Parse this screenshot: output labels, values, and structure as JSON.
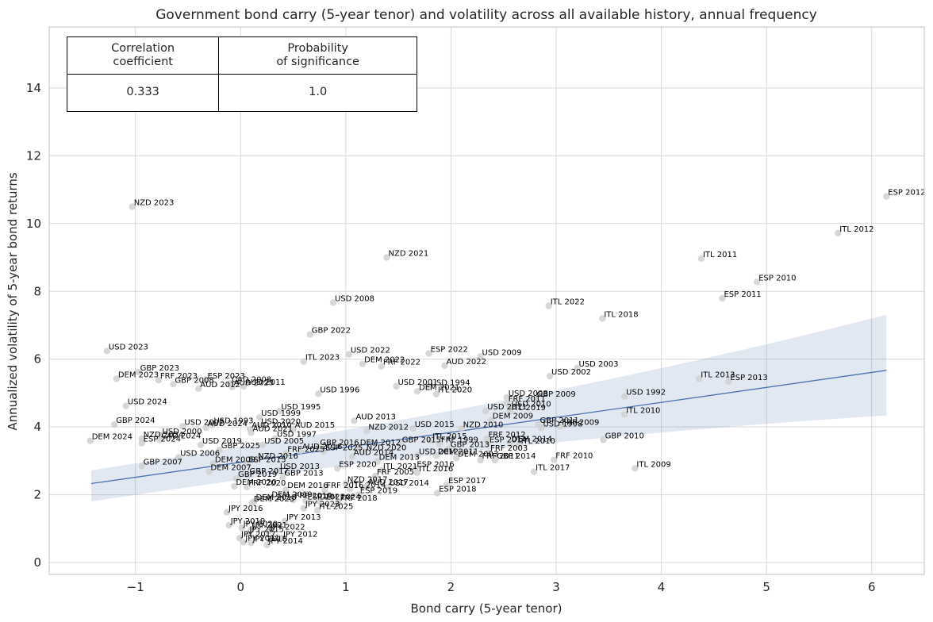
{
  "chart_data": {
    "type": "scatter",
    "title": "Government bond carry (5-year tenor) and volatility across all available history, annual frequency",
    "xlabel": "Bond carry (5-year tenor)",
    "ylabel": "Annualized volatility of 5-year bond returns",
    "xlim": [
      -1.82,
      6.5
    ],
    "ylim": [
      -0.35,
      15.8
    ],
    "xticks": [
      -1,
      0,
      1,
      2,
      3,
      4,
      5,
      6
    ],
    "yticks": [
      0,
      2,
      4,
      6,
      8,
      10,
      12,
      14
    ],
    "grid": true,
    "regression": {
      "x": [
        -1.42,
        6.14
      ],
      "y": [
        2.33,
        5.67
      ],
      "ci_lower": [
        1.52,
        4.34
      ],
      "ci_upper": [
        2.93,
        7.31
      ]
    },
    "stats_table": {
      "headers": [
        "Correlation\ncoefficient",
        "Probability\nof significance"
      ],
      "values": [
        "0.333",
        "1.0"
      ]
    },
    "points": [
      {
        "label": "ESP 2012",
        "x": 6.14,
        "y": 10.8
      },
      {
        "label": "ITL 2012",
        "x": 5.68,
        "y": 9.72
      },
      {
        "label": "ITL 2011",
        "x": 4.38,
        "y": 8.97
      },
      {
        "label": "ESP 2010",
        "x": 4.91,
        "y": 8.28
      },
      {
        "label": "ESP 2011",
        "x": 4.58,
        "y": 7.8
      },
      {
        "label": "ITL 2022",
        "x": 2.93,
        "y": 7.57
      },
      {
        "label": "ITL 2018",
        "x": 3.44,
        "y": 7.2
      },
      {
        "label": "NZD 2023",
        "x": -1.03,
        "y": 10.5
      },
      {
        "label": "NZD 2021",
        "x": 1.39,
        "y": 9.0
      },
      {
        "label": "USD 2008",
        "x": 0.88,
        "y": 7.67
      },
      {
        "label": "GBP 2022",
        "x": 0.66,
        "y": 6.73
      },
      {
        "label": "USD 2023",
        "x": -1.27,
        "y": 6.24
      },
      {
        "label": "USD 2022",
        "x": 1.03,
        "y": 6.14
      },
      {
        "label": "ESP 2022",
        "x": 1.79,
        "y": 6.17
      },
      {
        "label": "USD 2009",
        "x": 2.28,
        "y": 6.08
      },
      {
        "label": "ITL 2023",
        "x": 0.6,
        "y": 5.93
      },
      {
        "label": "DEM 2022",
        "x": 1.16,
        "y": 5.86
      },
      {
        "label": "FRF 2022",
        "x": 1.34,
        "y": 5.79
      },
      {
        "label": "AUD 2022",
        "x": 1.94,
        "y": 5.81
      },
      {
        "label": "USD 2003",
        "x": 3.2,
        "y": 5.74
      },
      {
        "label": "USD 2002",
        "x": 2.94,
        "y": 5.5
      },
      {
        "label": "GBP 2023",
        "x": -0.97,
        "y": 5.62
      },
      {
        "label": "DEM 2023",
        "x": -1.18,
        "y": 5.42
      },
      {
        "label": "FRF 2023",
        "x": -0.78,
        "y": 5.38
      },
      {
        "label": "ESP 2023",
        "x": -0.33,
        "y": 5.38
      },
      {
        "label": "GBP 2008",
        "x": -0.64,
        "y": 5.26
      },
      {
        "label": "ITL 2013",
        "x": 4.36,
        "y": 5.42
      },
      {
        "label": "ESP 2013",
        "x": 4.64,
        "y": 5.34
      },
      {
        "label": "CAD 2008",
        "x": -0.1,
        "y": 5.28
      },
      {
        "label": "AUD 2012",
        "x": -0.4,
        "y": 5.13
      },
      {
        "label": "AUD 2011",
        "x": 0.03,
        "y": 5.2
      },
      {
        "label": "AUD 2023",
        "x": -0.08,
        "y": 5.18
      },
      {
        "label": "USD 2001",
        "x": 1.48,
        "y": 5.2
      },
      {
        "label": "USD 1994",
        "x": 1.79,
        "y": 5.18
      },
      {
        "label": "DEM 2021",
        "x": 1.68,
        "y": 5.05
      },
      {
        "label": "ITL 2020",
        "x": 1.86,
        "y": 4.97
      },
      {
        "label": "USD 1996",
        "x": 0.74,
        "y": 4.98
      },
      {
        "label": "USD 2024",
        "x": -1.09,
        "y": 4.62
      },
      {
        "label": "USD 1992",
        "x": 3.65,
        "y": 4.9
      },
      {
        "label": "USD 2008",
        "x": 2.53,
        "y": 4.87
      },
      {
        "label": "GBP 2009",
        "x": 2.8,
        "y": 4.85
      },
      {
        "label": "FRF 2011",
        "x": 2.53,
        "y": 4.7
      },
      {
        "label": "USD 2010",
        "x": 2.56,
        "y": 4.55
      },
      {
        "label": "USD 2011",
        "x": 2.33,
        "y": 4.47
      },
      {
        "label": "ITL 2019",
        "x": 2.56,
        "y": 4.45
      },
      {
        "label": "ITL 2010",
        "x": 3.65,
        "y": 4.37
      },
      {
        "label": "USD 1995",
        "x": 0.37,
        "y": 4.47
      },
      {
        "label": "USD 1999",
        "x": 0.18,
        "y": 4.28
      },
      {
        "label": "AUD 2013",
        "x": 1.08,
        "y": 4.18
      },
      {
        "label": "GBP 2024",
        "x": -1.2,
        "y": 4.07
      },
      {
        "label": "USD 2007",
        "x": -0.55,
        "y": 4.02
      },
      {
        "label": "USD 1993",
        "x": -0.27,
        "y": 4.06
      },
      {
        "label": "USD 2020",
        "x": 0.18,
        "y": 4.04
      },
      {
        "label": "AUD 2024",
        "x": -0.33,
        "y": 3.98
      },
      {
        "label": "AUD 2010",
        "x": 0.09,
        "y": 3.93
      },
      {
        "label": "AUD 2015",
        "x": 0.5,
        "y": 3.93
      },
      {
        "label": "AUD 2021",
        "x": 0.1,
        "y": 3.83
      },
      {
        "label": "NZD 2012",
        "x": 1.2,
        "y": 3.88
      },
      {
        "label": "DEM 2009",
        "x": 2.38,
        "y": 4.2
      },
      {
        "label": "GBP 2011",
        "x": 2.83,
        "y": 4.07
      },
      {
        "label": "USD 1998",
        "x": 2.86,
        "y": 3.97
      },
      {
        "label": "FRF 2009",
        "x": 3.04,
        "y": 4.02
      },
      {
        "label": "NZD 2010",
        "x": 2.1,
        "y": 3.95
      },
      {
        "label": "USD 2015",
        "x": 1.64,
        "y": 3.96
      },
      {
        "label": "USD 2000",
        "x": -0.76,
        "y": 3.75
      },
      {
        "label": "NZD 2024",
        "x": -0.94,
        "y": 3.65
      },
      {
        "label": "CAD 2024",
        "x": -0.77,
        "y": 3.62
      },
      {
        "label": "ESP 2024",
        "x": -0.94,
        "y": 3.52
      },
      {
        "label": "DEM 2024",
        "x": -1.43,
        "y": 3.59
      },
      {
        "label": "USD 1997",
        "x": 0.33,
        "y": 3.66
      },
      {
        "label": "USD 2019",
        "x": -0.38,
        "y": 3.47
      },
      {
        "label": "USD 2005",
        "x": 0.21,
        "y": 3.47
      },
      {
        "label": "GBP 2025",
        "x": -0.2,
        "y": 3.32
      },
      {
        "label": "ITL 2015",
        "x": 1.81,
        "y": 3.6
      },
      {
        "label": "GBP 2015",
        "x": 1.52,
        "y": 3.5
      },
      {
        "label": "DEM 2012",
        "x": 1.12,
        "y": 3.42
      },
      {
        "label": "GBP 2016",
        "x": 0.74,
        "y": 3.42
      },
      {
        "label": "AUD 2016",
        "x": 0.57,
        "y": 3.3
      },
      {
        "label": "FRF 2012",
        "x": 2.34,
        "y": 3.65
      },
      {
        "label": "FRF 1999",
        "x": 1.89,
        "y": 3.5
      },
      {
        "label": "ESP 2014",
        "x": 2.35,
        "y": 3.5
      },
      {
        "label": "DEM 2014",
        "x": 2.56,
        "y": 3.52
      },
      {
        "label": "GBP 2010",
        "x": 3.45,
        "y": 3.62
      },
      {
        "label": "GBP 2013",
        "x": 1.98,
        "y": 3.36
      },
      {
        "label": "ITL 2010",
        "x": 2.65,
        "y": 3.47
      },
      {
        "label": "FRF 2025",
        "x": 0.43,
        "y": 3.22
      },
      {
        "label": "NZD 2020",
        "x": 1.18,
        "y": 3.27
      },
      {
        "label": "ESP 2025",
        "x": 0.79,
        "y": 3.27
      },
      {
        "label": "FRF 2003",
        "x": 2.36,
        "y": 3.25
      },
      {
        "label": "AUD 2014",
        "x": 1.06,
        "y": 3.12
      },
      {
        "label": "USD 2012",
        "x": 1.68,
        "y": 3.15
      },
      {
        "label": "DEM 2011",
        "x": 1.86,
        "y": 3.15
      },
      {
        "label": "DEM 2003",
        "x": 2.05,
        "y": 3.08
      },
      {
        "label": "FRF 2011",
        "x": 2.28,
        "y": 3.02
      },
      {
        "label": "GBP 2014",
        "x": 2.42,
        "y": 3.02
      },
      {
        "label": "NZD 2016",
        "x": 0.15,
        "y": 3.02
      },
      {
        "label": "USD 2006",
        "x": -0.59,
        "y": 3.1
      },
      {
        "label": "DEM 2013",
        "x": 1.3,
        "y": 2.98
      },
      {
        "label": "FRF 2010",
        "x": 2.98,
        "y": 3.03
      },
      {
        "label": "GBP 2007",
        "x": -0.94,
        "y": 2.85
      },
      {
        "label": "DEM 2009",
        "x": -0.26,
        "y": 2.92
      },
      {
        "label": "ESP 2015",
        "x": 0.06,
        "y": 2.92
      },
      {
        "label": "DEM 2007",
        "x": -0.3,
        "y": 2.68
      },
      {
        "label": "ESP 2020",
        "x": 0.92,
        "y": 2.78
      },
      {
        "label": "USD 2013",
        "x": 0.36,
        "y": 2.72
      },
      {
        "label": "ESP 2016",
        "x": 1.66,
        "y": 2.78
      },
      {
        "label": "ITL 2009",
        "x": 3.75,
        "y": 2.78
      },
      {
        "label": "ITL 2017",
        "x": 2.79,
        "y": 2.68
      },
      {
        "label": "GBP 2017",
        "x": 0.07,
        "y": 2.58
      },
      {
        "label": "GBP 2013",
        "x": 0.4,
        "y": 2.52
      },
      {
        "label": "GBP 2019",
        "x": -0.04,
        "y": 2.48
      },
      {
        "label": "ITL 2021",
        "x": 1.34,
        "y": 2.72
      },
      {
        "label": "ITL 2016",
        "x": 1.68,
        "y": 2.65
      },
      {
        "label": "DEM 2020",
        "x": -0.06,
        "y": 2.25
      },
      {
        "label": "FRF 2005",
        "x": 1.28,
        "y": 2.55
      },
      {
        "label": "ESP 2017",
        "x": 1.96,
        "y": 2.3
      },
      {
        "label": "ESP 2018",
        "x": 1.87,
        "y": 2.05
      },
      {
        "label": "FRF 2020",
        "x": 0.06,
        "y": 2.23
      },
      {
        "label": "USD 2014",
        "x": 1.4,
        "y": 2.23
      },
      {
        "label": "DEM 2016",
        "x": 0.43,
        "y": 2.15
      },
      {
        "label": "ITL 2014",
        "x": 1.04,
        "y": 2.17
      },
      {
        "label": "FRF 2016",
        "x": 0.8,
        "y": 2.15
      },
      {
        "label": "AUD 2017",
        "x": 1.2,
        "y": 2.25
      },
      {
        "label": "NZD 2017",
        "x": 1.0,
        "y": 2.33
      },
      {
        "label": "ESP 2019",
        "x": 1.12,
        "y": 2.0
      },
      {
        "label": "DEM 2019",
        "x": 0.28,
        "y": 1.88
      },
      {
        "label": "FRF 2019",
        "x": 0.5,
        "y": 1.85
      },
      {
        "label": "ESP 2021",
        "x": 0.62,
        "y": 1.82
      },
      {
        "label": "DEM 2024",
        "x": 0.74,
        "y": 1.82
      },
      {
        "label": "FRF 2018",
        "x": 0.93,
        "y": 1.78
      },
      {
        "label": "DEM 2018",
        "x": 0.13,
        "y": 1.8
      },
      {
        "label": "DEM 2025",
        "x": 0.11,
        "y": 1.76
      },
      {
        "label": "JPY 2023",
        "x": 0.6,
        "y": 1.6
      },
      {
        "label": "ITL 2025",
        "x": 0.73,
        "y": 1.54
      },
      {
        "label": "JPY 2016",
        "x": -0.13,
        "y": 1.48
      },
      {
        "label": "JPY 2013",
        "x": 0.42,
        "y": 1.22
      },
      {
        "label": "JPY 2019",
        "x": -0.11,
        "y": 1.1
      },
      {
        "label": "JPY 2020",
        "x": 0.01,
        "y": 1.02
      },
      {
        "label": "JPY 2021",
        "x": 0.1,
        "y": 0.98
      },
      {
        "label": "JPY 2022",
        "x": 0.27,
        "y": 0.93
      },
      {
        "label": "JPY 2015",
        "x": 0.07,
        "y": 0.85
      },
      {
        "label": "JPY 2012",
        "x": 0.39,
        "y": 0.72
      },
      {
        "label": "JPY 2017",
        "x": -0.01,
        "y": 0.72
      },
      {
        "label": "JPY 2011",
        "x": 0.03,
        "y": 0.6
      },
      {
        "label": "JPY 2018",
        "x": 0.1,
        "y": 0.58
      },
      {
        "label": "JPY 2014",
        "x": 0.25,
        "y": 0.52
      }
    ]
  }
}
